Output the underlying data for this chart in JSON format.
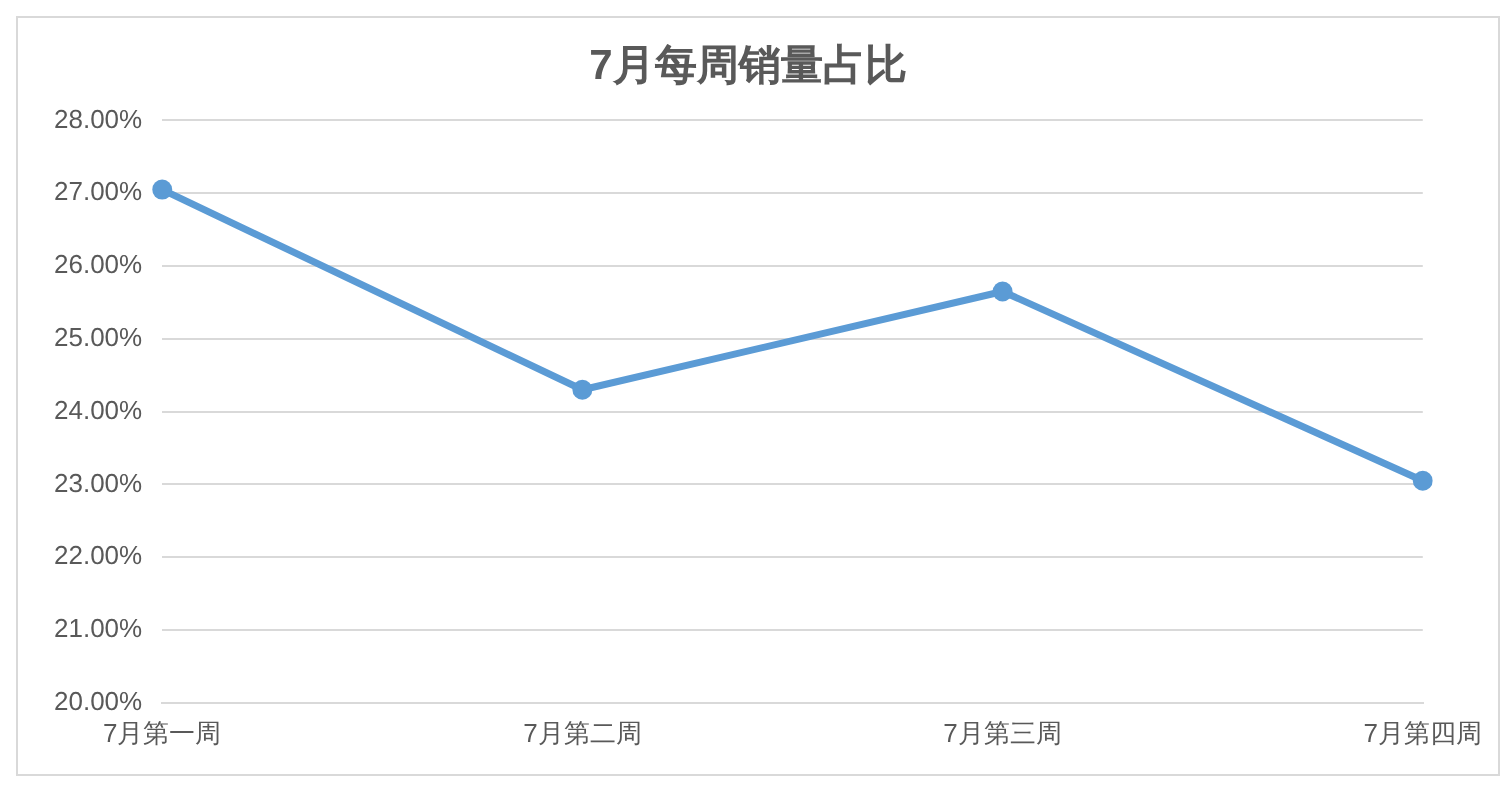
{
  "chart_data": {
    "type": "line",
    "title": "7月每周销量占比",
    "categories": [
      "7月第一周",
      "7月第二周",
      "7月第三周",
      "7月第四周"
    ],
    "series": [
      {
        "color": "#5b9bd5",
        "values": [
          27.05,
          24.3,
          25.65,
          23.05
        ]
      }
    ],
    "ylim": [
      20,
      28
    ],
    "yticks": [
      {
        "value": 20,
        "label": "20.00%"
      },
      {
        "value": 21,
        "label": "21.00%"
      },
      {
        "value": 22,
        "label": "22.00%"
      },
      {
        "value": 23,
        "label": "23.00%"
      },
      {
        "value": 24,
        "label": "24.00%"
      },
      {
        "value": 25,
        "label": "25.00%"
      },
      {
        "value": 26,
        "label": "26.00%"
      },
      {
        "value": 27,
        "label": "27.00%"
      },
      {
        "value": 28,
        "label": "28.00%"
      }
    ],
    "grid": "y",
    "marker": "circle"
  }
}
